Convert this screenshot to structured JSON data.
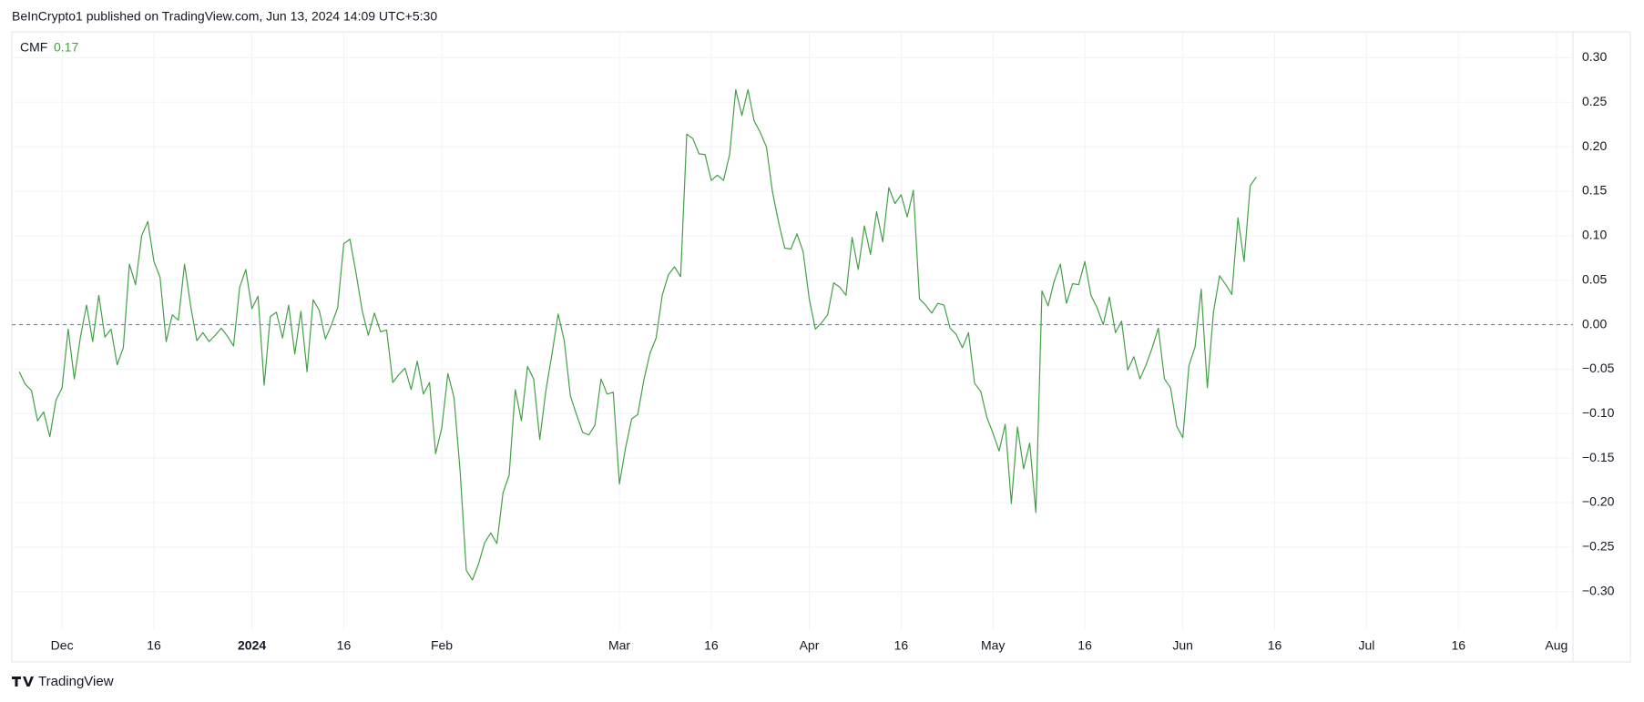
{
  "header": "BeInCrypto1 published on TradingView.com, Jun 13, 2024 14:09 UTC+5:30",
  "footer": "TradingView",
  "chart_data": {
    "type": "line",
    "legend_value": "0.17",
    "grid": true,
    "hline": 0,
    "xlim": [
      -8.2,
      246.7
    ],
    "ylim": [
      -0.379,
      0.329
    ],
    "xticks": [
      {
        "value": 0,
        "label": "Dec"
      },
      {
        "value": 15,
        "label": "16"
      },
      {
        "value": 31,
        "label": "2024"
      },
      {
        "value": 46,
        "label": "16"
      },
      {
        "value": 62,
        "label": "Feb"
      },
      {
        "value": 91,
        "label": "Mar"
      },
      {
        "value": 106,
        "label": "16"
      },
      {
        "value": 122,
        "label": "Apr"
      },
      {
        "value": 137,
        "label": "16"
      },
      {
        "value": 152,
        "label": "May"
      },
      {
        "value": 167,
        "label": "16"
      },
      {
        "value": 183,
        "label": "Jun"
      },
      {
        "value": 198,
        "label": "16"
      },
      {
        "value": 213,
        "label": "Jul"
      },
      {
        "value": 228,
        "label": "16"
      },
      {
        "value": 244,
        "label": "Aug"
      }
    ],
    "yticks": [
      {
        "value": 0.3,
        "label": "0.30"
      },
      {
        "value": 0.25,
        "label": "0.25"
      },
      {
        "value": 0.2,
        "label": "0.20"
      },
      {
        "value": 0.15,
        "label": "0.15"
      },
      {
        "value": 0.1,
        "label": "0.10"
      },
      {
        "value": 0.05,
        "label": "0.05"
      },
      {
        "value": 0,
        "label": "0.00"
      },
      {
        "value": -0.05,
        "label": "−0.05"
      },
      {
        "value": -0.1,
        "label": "−0.10"
      },
      {
        "value": -0.15,
        "label": "−0.15"
      },
      {
        "value": -0.2,
        "label": "−0.20"
      },
      {
        "value": -0.25,
        "label": "−0.25"
      },
      {
        "value": -0.3,
        "label": "−0.30"
      }
    ],
    "x": [
      -7,
      -6,
      -5,
      -4,
      -3,
      -2,
      -1,
      0,
      1,
      2,
      3,
      4,
      5,
      6,
      7,
      8,
      9,
      10,
      11,
      12,
      13,
      14,
      15,
      16,
      17,
      18,
      19,
      20,
      21,
      22,
      23,
      24,
      25,
      26,
      27,
      28,
      29,
      30,
      31,
      32,
      33,
      34,
      35,
      36,
      37,
      38,
      39,
      40,
      41,
      42,
      43,
      44,
      45,
      46,
      47,
      48,
      49,
      50,
      51,
      52,
      53,
      54,
      55,
      56,
      57,
      58,
      59,
      60,
      61,
      62,
      63,
      64,
      65,
      66,
      67,
      68,
      69,
      70,
      71,
      72,
      73,
      74,
      75,
      76,
      77,
      78,
      79,
      80,
      81,
      82,
      83,
      84,
      85,
      86,
      87,
      88,
      89,
      90,
      91,
      92,
      93,
      94,
      95,
      96,
      97,
      98,
      99,
      100,
      101,
      102,
      103,
      104,
      105,
      106,
      107,
      108,
      109,
      110,
      111,
      112,
      113,
      114,
      115,
      116,
      117,
      118,
      119,
      120,
      121,
      122,
      123,
      124,
      125,
      126,
      127,
      128,
      129,
      130,
      131,
      132,
      133,
      134,
      135,
      136,
      137,
      138,
      139,
      140,
      141,
      142,
      143,
      144,
      145,
      146,
      147,
      148,
      149,
      150,
      151,
      152,
      153,
      154,
      155,
      156,
      157,
      158,
      159,
      160,
      161,
      162,
      163,
      164,
      165,
      166,
      167,
      168,
      169,
      170,
      171,
      172,
      173,
      174,
      175,
      176,
      177,
      178,
      179,
      180,
      181,
      182,
      183,
      184,
      185,
      186,
      187,
      188,
      189,
      190,
      191,
      192,
      193,
      194,
      195
    ],
    "series": [
      {
        "name": "CMF",
        "color": "#43a047",
        "values": [
          -0.053,
          -0.067,
          -0.074,
          -0.108,
          -0.098,
          -0.126,
          -0.085,
          -0.071,
          -0.005,
          -0.061,
          -0.014,
          0.022,
          -0.019,
          0.033,
          -0.014,
          -0.005,
          -0.045,
          -0.026,
          0.068,
          0.045,
          0.1,
          0.116,
          0.071,
          0.053,
          -0.019,
          0.011,
          0.005,
          0.068,
          0.021,
          -0.018,
          -0.009,
          -0.019,
          -0.012,
          -0.004,
          -0.013,
          -0.024,
          0.042,
          0.062,
          0.018,
          0.032,
          -0.068,
          0.009,
          0.014,
          -0.015,
          0.022,
          -0.033,
          0.015,
          -0.053,
          0.028,
          0.016,
          -0.016,
          0,
          0.019,
          0.091,
          0.096,
          0.058,
          0.016,
          -0.012,
          0.013,
          -0.008,
          -0.006,
          -0.065,
          -0.056,
          -0.049,
          -0.073,
          -0.041,
          -0.078,
          -0.065,
          -0.145,
          -0.116,
          -0.055,
          -0.082,
          -0.165,
          -0.276,
          -0.287,
          -0.269,
          -0.245,
          -0.234,
          -0.246,
          -0.189,
          -0.169,
          -0.073,
          -0.108,
          -0.047,
          -0.061,
          -0.129,
          -0.074,
          -0.033,
          0.012,
          -0.018,
          -0.08,
          -0.101,
          -0.121,
          -0.124,
          -0.113,
          -0.061,
          -0.078,
          -0.076,
          -0.179,
          -0.139,
          -0.106,
          -0.101,
          -0.062,
          -0.032,
          -0.015,
          0.033,
          0.056,
          0.065,
          0.054,
          0.214,
          0.209,
          0.192,
          0.191,
          0.162,
          0.168,
          0.162,
          0.191,
          0.264,
          0.235,
          0.264,
          0.229,
          0.216,
          0.2,
          0.149,
          0.115,
          0.086,
          0.085,
          0.102,
          0.082,
          0.029,
          -0.005,
          0.002,
          0.011,
          0.047,
          0.042,
          0.033,
          0.098,
          0.062,
          0.111,
          0.079,
          0.127,
          0.093,
          0.154,
          0.136,
          0.146,
          0.121,
          0.151,
          0.029,
          0.022,
          0.013,
          0.024,
          0.022,
          -0.004,
          -0.011,
          -0.026,
          -0.009,
          -0.066,
          -0.075,
          -0.104,
          -0.122,
          -0.142,
          -0.112,
          -0.201,
          -0.115,
          -0.162,
          -0.133,
          -0.211,
          0.038,
          0.021,
          0.049,
          0.068,
          0.024,
          0.046,
          0.045,
          0.071,
          0.033,
          0.019,
          0,
          0.031,
          -0.009,
          0.004,
          -0.051,
          -0.036,
          -0.061,
          -0.045,
          -0.026,
          -0.004,
          -0.061,
          -0.071,
          -0.114,
          -0.127,
          -0.046,
          -0.025,
          0.04,
          -0.071,
          0.014,
          0.055,
          0.045,
          0.034,
          0.12,
          0.071,
          0.156,
          0.166
        ]
      }
    ]
  }
}
